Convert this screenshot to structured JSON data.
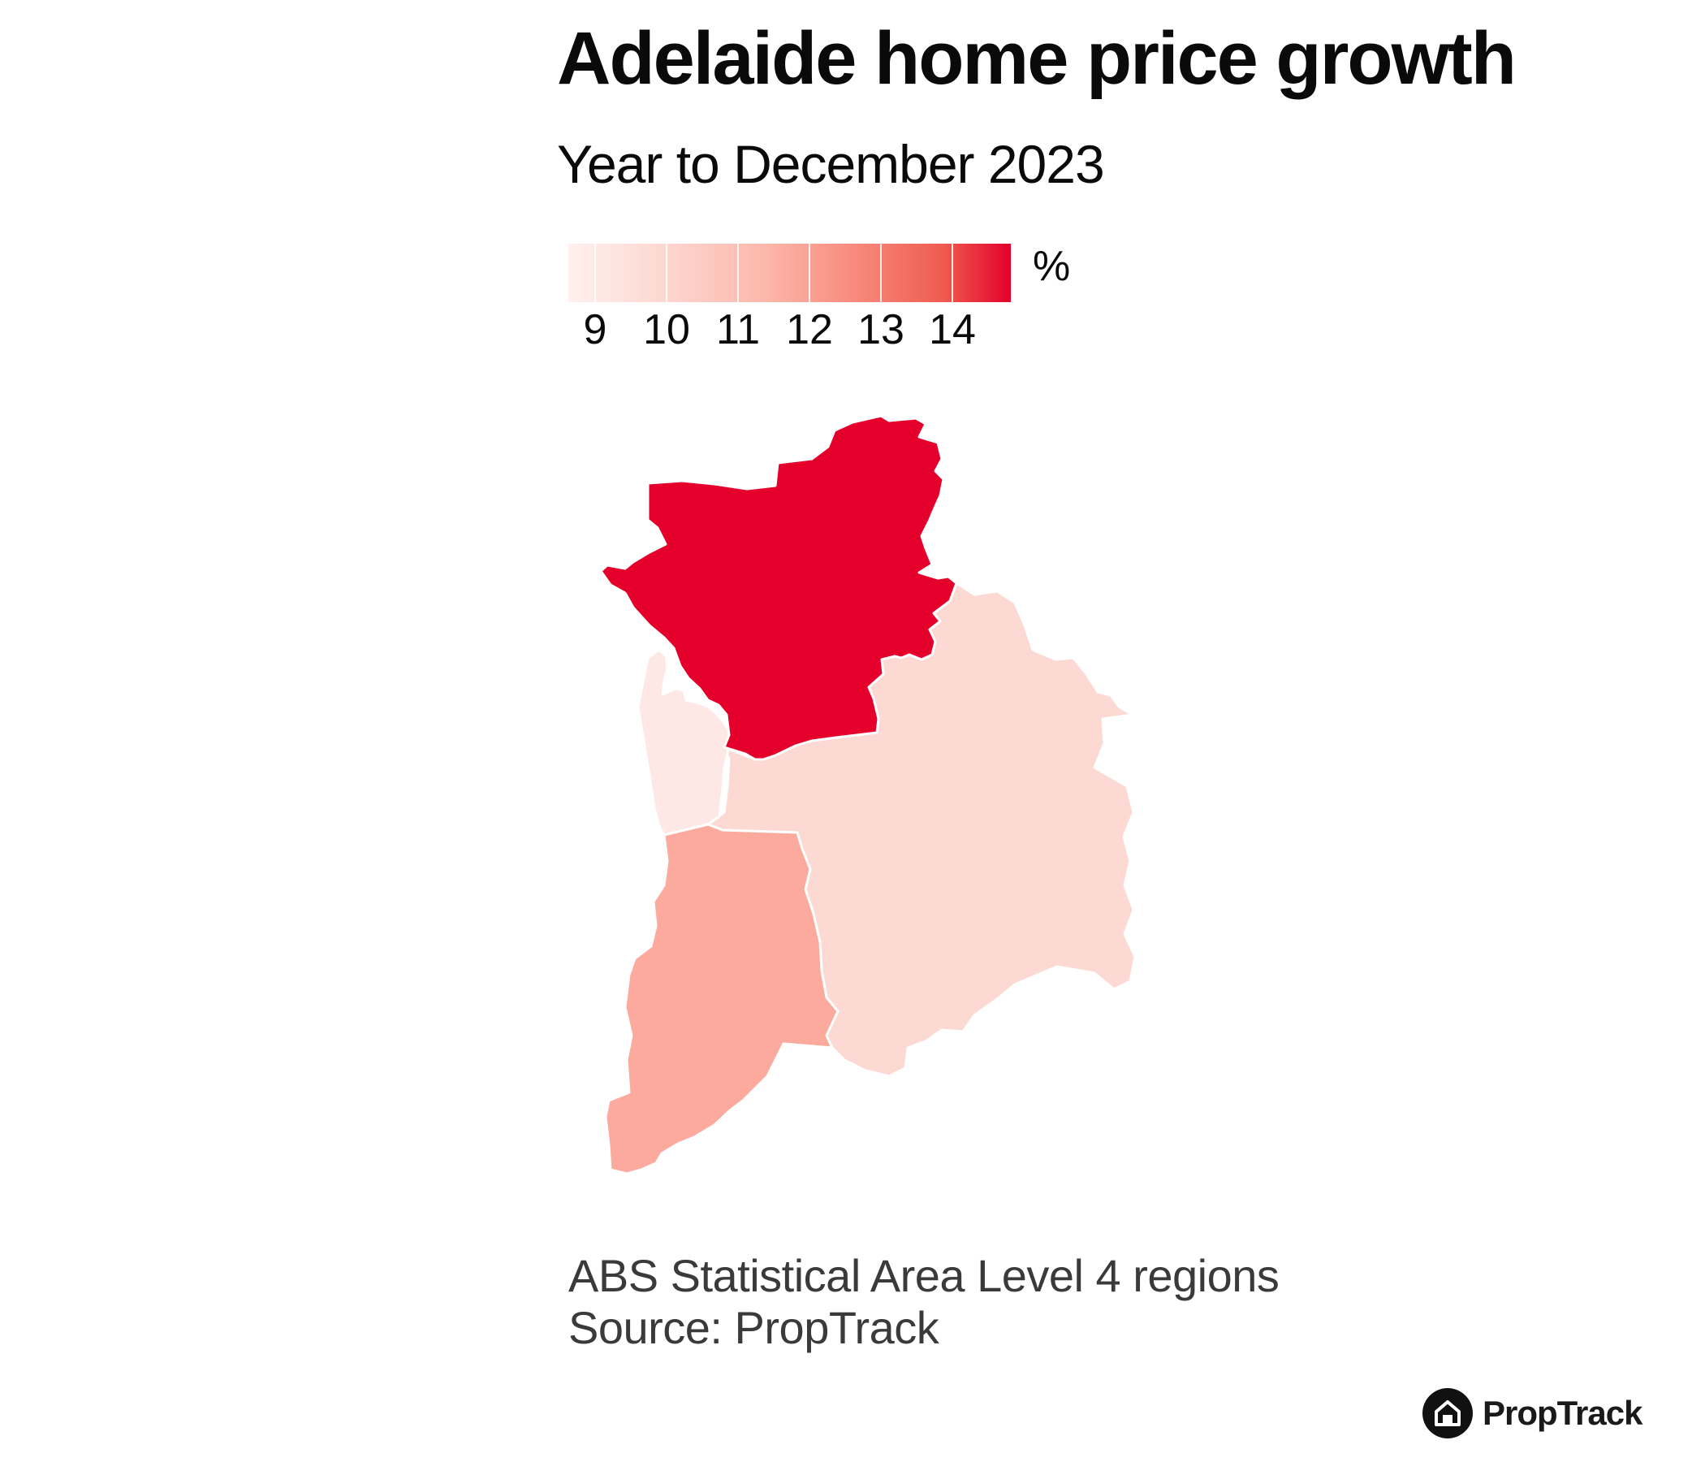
{
  "title": "Adelaide home price growth",
  "subtitle": "Year to December 2023",
  "legend": {
    "unit": "%",
    "ticks": [
      "9",
      "10",
      "11",
      "12",
      "13",
      "14"
    ],
    "min": 8.6,
    "max": 14.8,
    "color_low": "#fff0ee",
    "color_high": "#e4002b"
  },
  "regions": [
    {
      "id": "north",
      "growth": 14.8,
      "color": "#e4002b"
    },
    {
      "id": "west",
      "growth": 9.0,
      "color": "#fee8e5"
    },
    {
      "id": "central-east",
      "growth": 9.5,
      "color": "#fdd9d3"
    },
    {
      "id": "south",
      "growth": 11.0,
      "color": "#fca99e"
    }
  ],
  "footnote": {
    "line1": "ABS Statistical Area Level 4 regions",
    "line2": "Source: PropTrack"
  },
  "brand": {
    "name": "PropTrack",
    "logo_icon": "house-icon"
  }
}
